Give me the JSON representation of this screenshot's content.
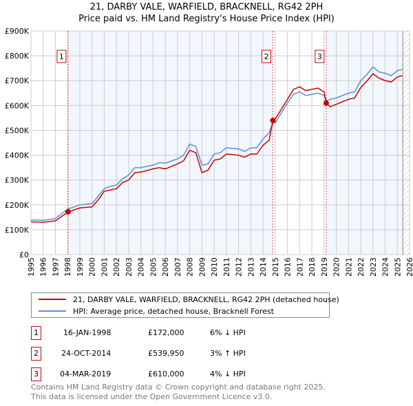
{
  "chart_data": {
    "type": "line",
    "title": "21, DARBY VALE, WARFIELD, BRACKNELL, RG42 2PH",
    "subtitle": "Price paid vs. HM Land Registry's House Price Index (HPI)",
    "xlim": [
      1995,
      2026
    ],
    "ylim": [
      0,
      900000
    ],
    "y_ticks": [
      {
        "v": 0,
        "l": "£0"
      },
      {
        "v": 100000,
        "l": "£100K"
      },
      {
        "v": 200000,
        "l": "£200K"
      },
      {
        "v": 300000,
        "l": "£300K"
      },
      {
        "v": 400000,
        "l": "£400K"
      },
      {
        "v": 500000,
        "l": "£500K"
      },
      {
        "v": 600000,
        "l": "£600K"
      },
      {
        "v": 700000,
        "l": "£700K"
      },
      {
        "v": 800000,
        "l": "£800K"
      },
      {
        "v": 900000,
        "l": "£900K"
      }
    ],
    "x_ticks": [
      "1995",
      "1996",
      "1997",
      "1998",
      "1999",
      "2000",
      "2001",
      "2002",
      "2003",
      "2004",
      "2005",
      "2006",
      "2007",
      "2008",
      "2009",
      "2010",
      "2011",
      "2012",
      "2013",
      "2014",
      "2015",
      "2016",
      "2017",
      "2018",
      "2019",
      "2020",
      "2021",
      "2022",
      "2023",
      "2024",
      "2025",
      "2026"
    ],
    "grid": true,
    "forecast_from": 2025.45,
    "series": [
      {
        "name": "21, DARBY VALE, WARFIELD, BRACKNELL, RG42 2PH (detached house)",
        "color": "#cc0000",
        "x": [
          1995,
          1996,
          1997,
          1998.04,
          1999,
          2000,
          2000.5,
          2001,
          2001.5,
          2002,
          2002.5,
          2003,
          2003.5,
          2004,
          2005,
          2005.5,
          2006,
          2007,
          2007.5,
          2008,
          2008.5,
          2009,
          2009.5,
          2010,
          2010.5,
          2011,
          2012,
          2012.5,
          2013,
          2013.5,
          2014,
          2014.5,
          2014.81,
          2015,
          2015.5,
          2016,
          2016.5,
          2017,
          2017.5,
          2018,
          2018.5,
          2019,
          2019.17,
          2019.5,
          2020,
          2021,
          2021.5,
          2022,
          2022.5,
          2023,
          2023.5,
          2024,
          2024.5,
          2025,
          2025.4
        ],
        "y": [
          132000,
          130000,
          136000,
          172000,
          188000,
          192000,
          220000,
          255000,
          260000,
          265000,
          290000,
          300000,
          330000,
          332000,
          345000,
          350000,
          345000,
          365000,
          378000,
          420000,
          410000,
          330000,
          340000,
          380000,
          385000,
          405000,
          400000,
          392000,
          405000,
          405000,
          440000,
          460000,
          539950,
          545000,
          585000,
          625000,
          665000,
          675000,
          660000,
          665000,
          670000,
          655000,
          610000,
          595000,
          605000,
          625000,
          630000,
          672000,
          698000,
          728000,
          710000,
          700000,
          695000,
          715000,
          720000
        ]
      },
      {
        "name": "HPI: Average price, detached house, Bracknell Forest",
        "color": "#5b8fd4",
        "x": [
          1995,
          1996,
          1997,
          1998,
          1999,
          2000,
          2000.5,
          2001,
          2001.5,
          2002,
          2002.5,
          2003,
          2003.5,
          2004,
          2005,
          2005.5,
          2006,
          2007,
          2007.5,
          2008,
          2008.5,
          2009,
          2009.5,
          2010,
          2010.5,
          2011,
          2012,
          2012.5,
          2013,
          2013.5,
          2014,
          2014.5,
          2014.8,
          2015,
          2015.5,
          2016,
          2016.5,
          2017,
          2017.5,
          2018,
          2018.5,
          2019,
          2019.2,
          2019.5,
          2020,
          2021,
          2021.5,
          2022,
          2022.5,
          2023,
          2023.5,
          2024,
          2024.5,
          2025,
          2025.4
        ],
        "y": [
          140000,
          138000,
          145000,
          183000,
          200000,
          205000,
          235000,
          265000,
          275000,
          280000,
          305000,
          320000,
          350000,
          350000,
          360000,
          370000,
          368000,
          385000,
          400000,
          445000,
          435000,
          360000,
          365000,
          405000,
          410000,
          430000,
          425000,
          415000,
          430000,
          430000,
          465000,
          490000,
          530000,
          530000,
          570000,
          610000,
          645000,
          655000,
          640000,
          645000,
          650000,
          640000,
          620000,
          625000,
          630000,
          650000,
          655000,
          700000,
          725000,
          755000,
          735000,
          730000,
          720000,
          740000,
          745000
        ]
      }
    ],
    "transactions": [
      {
        "label": "1",
        "x": 1998.04,
        "date": "16-JAN-1998",
        "price": 172000,
        "price_text": "£172,000",
        "hpi": "6% ↓ HPI"
      },
      {
        "label": "2",
        "x": 2014.81,
        "date": "24-OCT-2014",
        "price": 539950,
        "price_text": "£539,950",
        "hpi": "3% ↑ HPI"
      },
      {
        "label": "3",
        "x": 2019.17,
        "date": "04-MAR-2019",
        "price": 610000,
        "price_text": "£610,000",
        "hpi": "4% ↓ HPI"
      }
    ]
  },
  "footer": {
    "line1": "Contains HM Land Registry data © Crown copyright and database right 2025.",
    "line2": "This data is licensed under the Open Government Licence v3.0."
  }
}
